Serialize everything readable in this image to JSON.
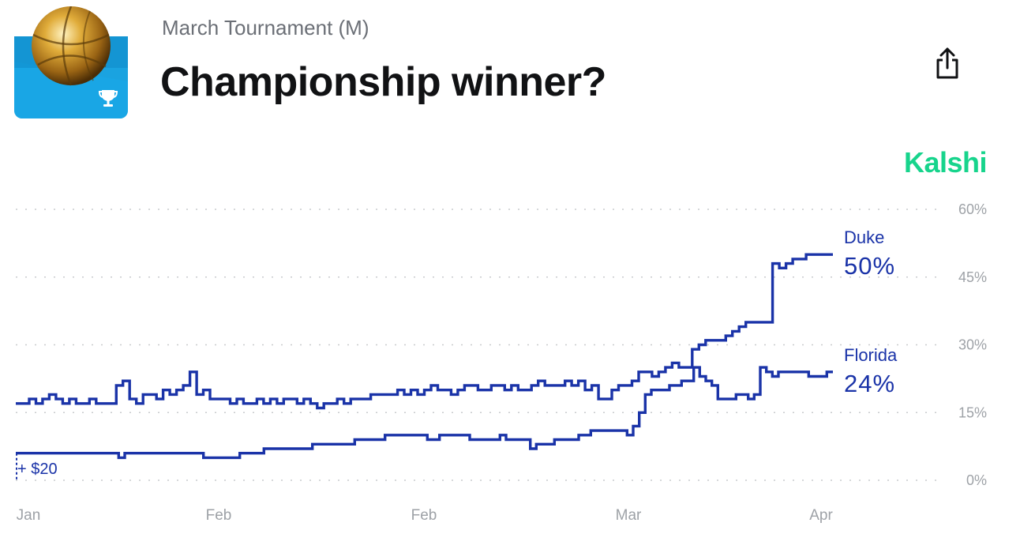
{
  "header": {
    "subtitle": "March Tournament (M)",
    "title": "Championship winner?",
    "brand": "Kalshi"
  },
  "colors": {
    "series": "#1a33a8",
    "brand": "#17d48c",
    "thumb_bg": "#1aa3e0",
    "thumb_band": "#0e86c4"
  },
  "icons": {
    "share": "share-icon",
    "trophy": "trophy-icon",
    "basketball": "basketball-icon"
  },
  "chart_data": {
    "type": "line",
    "title": "",
    "xlabel": "",
    "ylabel": "",
    "ylim": [
      0,
      60
    ],
    "y_ticks": [
      "0%",
      "15%",
      "30%",
      "45%",
      "60%"
    ],
    "y_tick_values": [
      0,
      15,
      30,
      45,
      60
    ],
    "x_tick_labels": [
      "Jan",
      "Feb",
      "Feb",
      "Mar",
      "Apr"
    ],
    "grid": true,
    "legend": "right-of-line-end",
    "annotation": "+ $20",
    "series": [
      {
        "name": "Duke",
        "label_value": "50%",
        "color": "#1a33a8",
        "values": [
          17,
          17,
          18,
          17,
          18,
          19,
          18,
          17,
          18,
          17,
          17,
          18,
          17,
          17,
          17,
          21,
          22,
          18,
          17,
          19,
          19,
          18,
          20,
          19,
          20,
          21,
          24,
          19,
          20,
          18,
          18,
          18,
          17,
          18,
          17,
          17,
          18,
          17,
          18,
          17,
          18,
          18,
          17,
          18,
          17,
          16,
          17,
          17,
          18,
          17,
          18,
          18,
          18,
          19,
          19,
          19,
          19,
          20,
          19,
          20,
          19,
          20,
          21,
          20,
          20,
          19,
          20,
          21,
          21,
          20,
          20,
          21,
          21,
          20,
          21,
          20,
          20,
          21,
          22,
          21,
          21,
          21,
          22,
          21,
          22,
          20,
          21,
          18,
          18,
          20,
          21,
          21,
          22,
          24,
          24,
          23,
          24,
          25,
          26,
          25,
          25,
          29,
          30,
          31,
          31,
          31,
          32,
          33,
          34,
          35,
          35,
          35,
          35,
          48,
          47,
          48,
          49,
          49,
          50,
          50,
          50,
          50,
          50
        ]
      },
      {
        "name": "Florida",
        "label_value": "24%",
        "color": "#1a33a8",
        "values": [
          6,
          6,
          6,
          6,
          6,
          6,
          6,
          6,
          6,
          6,
          6,
          6,
          6,
          6,
          6,
          6,
          6,
          5,
          6,
          6,
          6,
          6,
          6,
          6,
          6,
          6,
          6,
          6,
          6,
          6,
          6,
          5,
          5,
          5,
          5,
          5,
          5,
          6,
          6,
          6,
          6,
          7,
          7,
          7,
          7,
          7,
          7,
          7,
          7,
          8,
          8,
          8,
          8,
          8,
          8,
          8,
          9,
          9,
          9,
          9,
          9,
          10,
          10,
          10,
          10,
          10,
          10,
          10,
          9,
          9,
          10,
          10,
          10,
          10,
          10,
          9,
          9,
          9,
          9,
          9,
          10,
          9,
          9,
          9,
          9,
          7,
          8,
          8,
          8,
          9,
          9,
          9,
          9,
          10,
          10,
          11,
          11,
          11,
          11,
          11,
          11,
          10,
          12,
          15,
          19,
          20,
          20,
          20,
          21,
          21,
          22,
          22,
          25,
          23,
          22,
          21,
          18,
          18,
          18,
          19,
          19,
          18,
          19,
          25,
          24,
          23,
          24,
          24,
          24,
          24,
          24,
          23,
          23,
          23,
          24,
          24
        ]
      }
    ]
  }
}
